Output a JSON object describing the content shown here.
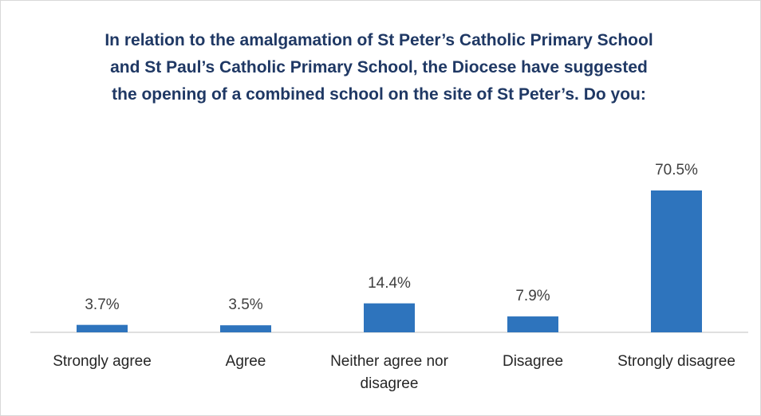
{
  "chart_data": {
    "type": "bar",
    "title": "In relation to the amalgamation of St Peter’s Catholic Primary School and St Paul’s Catholic Primary School, the Diocese have suggested the opening of a combined school on the site of St Peter’s. Do you:",
    "categories": [
      "Strongly agree",
      "Agree",
      "Neither agree nor disagree",
      "Disagree",
      "Strongly disagree"
    ],
    "values": [
      3.7,
      3.5,
      14.4,
      7.9,
      70.5
    ],
    "value_labels": [
      "3.7%",
      "3.5%",
      "14.4%",
      "7.9%",
      "70.5%"
    ],
    "color": "#2e74bd"
  }
}
